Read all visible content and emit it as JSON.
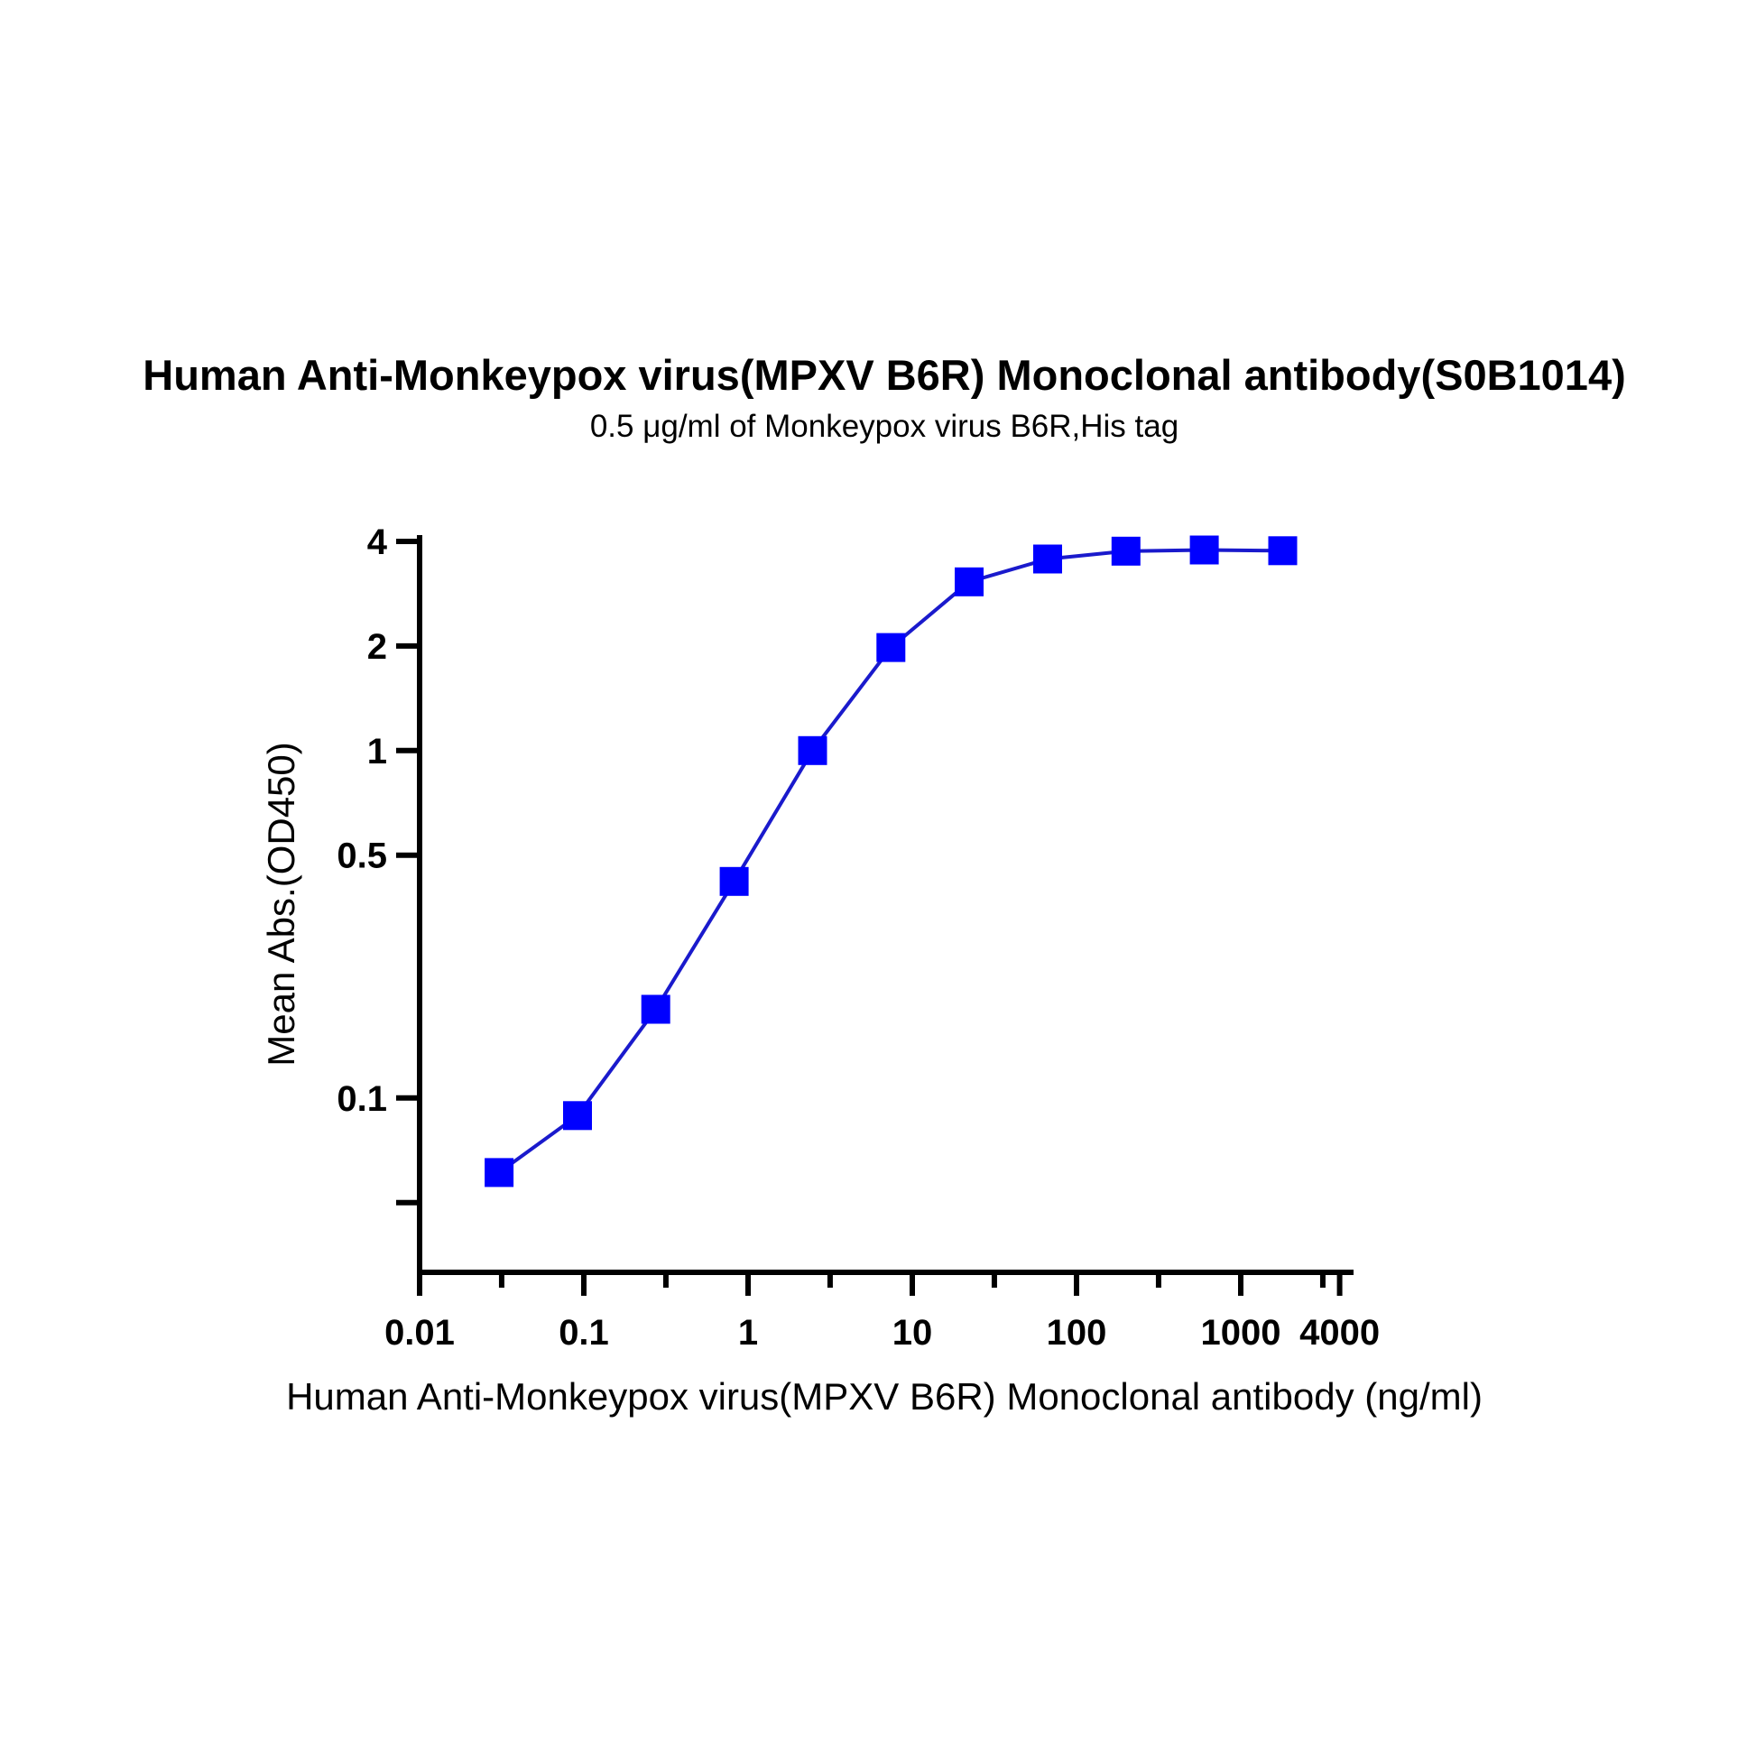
{
  "chart_data": {
    "type": "line",
    "title": "Human Anti-Monkeypox virus(MPXV B6R) Monoclonal antibody(S0B1014)",
    "subtitle": "0.5 μg/ml of Monkeypox virus B6R,His tag",
    "xlabel": "Human Anti-Monkeypox virus(MPXV B6R) Monoclonal antibody (ng/ml)",
    "ylabel": "Mean Abs.(OD450)",
    "x_scale": "log",
    "y_scale": "log",
    "xlim": [
      0.01,
      4000
    ],
    "ylim": [
      0.03,
      4
    ],
    "x_ticks": [
      0.01,
      0.1,
      1,
      10,
      100,
      1000,
      4000
    ],
    "x_tick_labels": [
      "0.01",
      "0.1",
      "1",
      "10",
      "100",
      "1000",
      "4000"
    ],
    "x_minor_ticks": [
      0.0316,
      0.316,
      3.16,
      31.6,
      316,
      3160
    ],
    "y_ticks": [
      0.1,
      0.5,
      1,
      2,
      4
    ],
    "y_tick_labels": [
      "0.1",
      "0.5",
      "1",
      "2",
      "4"
    ],
    "y_minor_ticks": [
      0.05
    ],
    "grid": false,
    "legend": "none",
    "marker": "square",
    "series_color": "#0000ff",
    "line_color": "#1a1acc",
    "series": [
      {
        "x": [
          0.0305,
          0.0915,
          0.274,
          0.823,
          2.47,
          7.41,
          22.2,
          66.7,
          200,
          600,
          1800
        ],
        "y": [
          0.061,
          0.089,
          0.18,
          0.42,
          1.0,
          1.98,
          3.06,
          3.56,
          3.75,
          3.78,
          3.76
        ]
      }
    ]
  }
}
